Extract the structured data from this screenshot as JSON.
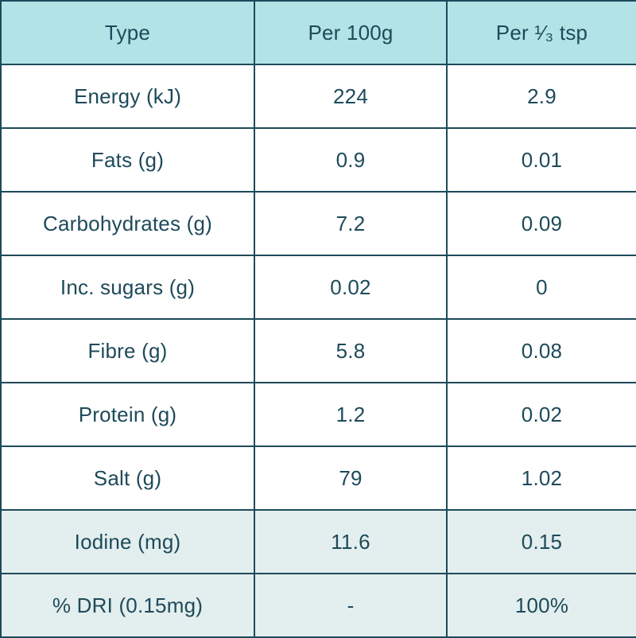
{
  "header": {
    "col1": "Type",
    "col2": "Per 100g",
    "col3": "Per ¹⁄₃ tsp"
  },
  "rows": [
    {
      "type": "Energy (kJ)",
      "per100g": "224",
      "per_third_tsp": "2.9"
    },
    {
      "type": "Fats (g)",
      "per100g": "0.9",
      "per_third_tsp": "0.01"
    },
    {
      "type": "Carbohydrates (g)",
      "per100g": "7.2",
      "per_third_tsp": "0.09"
    },
    {
      "type": "Inc. sugars (g)",
      "per100g": "0.02",
      "per_third_tsp": "0"
    },
    {
      "type": "Fibre (g)",
      "per100g": "5.8",
      "per_third_tsp": "0.08"
    },
    {
      "type": "Protein (g)",
      "per100g": "1.2",
      "per_third_tsp": "0.02"
    },
    {
      "type": "Salt (g)",
      "per100g": "79",
      "per_third_tsp": "1.02"
    },
    {
      "type": "Iodine (mg)",
      "per100g": "11.6",
      "per_third_tsp": "0.15"
    },
    {
      "type": "% DRI (0.15mg)",
      "per100g": "-",
      "per_third_tsp": "100%"
    }
  ],
  "colors": {
    "header_bg": "#b2e3e6",
    "text": "#1e4a5a",
    "border": "#1e4a5a",
    "shaded_row_bg": "#e3eeee"
  }
}
